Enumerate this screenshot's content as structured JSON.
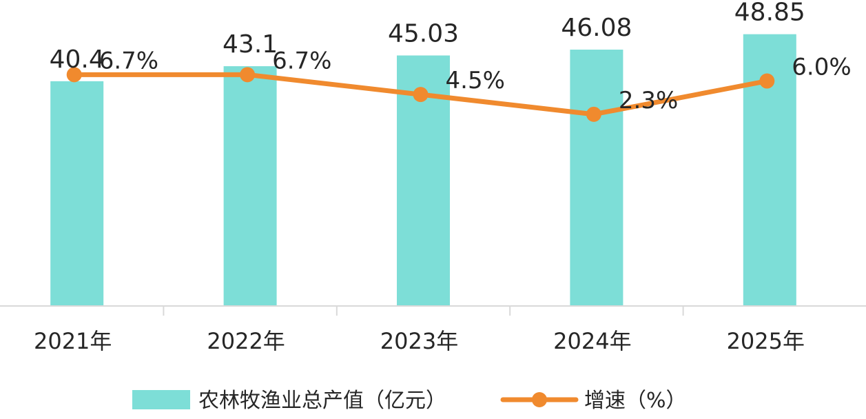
{
  "chart_data": {
    "type": "bar",
    "categories": [
      "2021年",
      "2022年",
      "2023年",
      "2024年",
      "2025年"
    ],
    "series": [
      {
        "name": "农林牧渔业总产值（亿元）",
        "type": "bar",
        "axis": "left",
        "values": [
          40.4,
          43.1,
          45.03,
          46.08,
          48.85
        ],
        "labels": [
          "40.4",
          "43.1",
          "45.03",
          "46.08",
          "48.85"
        ],
        "color": "#7DDED7"
      },
      {
        "name": "增速（%）",
        "type": "line",
        "axis": "right",
        "values": [
          6.7,
          6.7,
          4.5,
          2.3,
          6.0
        ],
        "labels": [
          "6.7%",
          "6.7%",
          "4.5%",
          "2.3%",
          "6.0%"
        ],
        "color": "#F08A2E"
      }
    ],
    "ylim": [
      0,
      55
    ],
    "y2lim": [
      -19,
      15
    ],
    "grid": false,
    "legend": "bottom",
    "axis_color": "#D9D9D9",
    "label_color": "#262626"
  }
}
